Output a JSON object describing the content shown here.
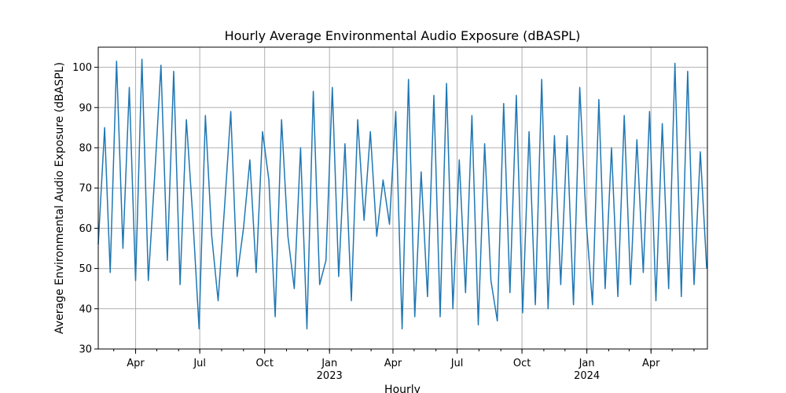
{
  "chart_data": {
    "type": "line",
    "title": "Hourly Average Environmental Audio Exposure (dBASPL)",
    "xlabel": "Hourly",
    "ylabel": "Average Environmental Audio Exposure (dBASPL)",
    "x_range": [
      "2022-02-07",
      "2024-06-20"
    ],
    "ylim": [
      30,
      105
    ],
    "grid": true,
    "series_color": "#1f77b4",
    "y_ticks": [
      30,
      40,
      50,
      60,
      70,
      80,
      90,
      100
    ],
    "x_ticks": [
      {
        "date": "2022-04-01",
        "label": "Apr",
        "year_label": ""
      },
      {
        "date": "2022-07-01",
        "label": "Jul",
        "year_label": ""
      },
      {
        "date": "2022-10-01",
        "label": "Oct",
        "year_label": ""
      },
      {
        "date": "2023-01-01",
        "label": "Jan",
        "year_label": "2023"
      },
      {
        "date": "2023-04-01",
        "label": "Apr",
        "year_label": ""
      },
      {
        "date": "2023-07-01",
        "label": "Jul",
        "year_label": ""
      },
      {
        "date": "2023-10-01",
        "label": "Oct",
        "year_label": ""
      },
      {
        "date": "2024-01-01",
        "label": "Jan",
        "year_label": "2024"
      },
      {
        "date": "2024-04-01",
        "label": "Apr",
        "year_label": ""
      }
    ],
    "series": [
      {
        "x": [
          "2022-02-07",
          "2022-02-16",
          "2022-02-24",
          "2022-03-05",
          "2022-03-14",
          "2022-03-23",
          "2022-04-01",
          "2022-04-10",
          "2022-04-19",
          "2022-04-28",
          "2022-05-07",
          "2022-05-16",
          "2022-05-25",
          "2022-06-03",
          "2022-06-12",
          "2022-06-21",
          "2022-06-30",
          "2022-07-09",
          "2022-07-18",
          "2022-07-27",
          "2022-08-05",
          "2022-08-14",
          "2022-08-23",
          "2022-09-01",
          "2022-09-10",
          "2022-09-19",
          "2022-09-28",
          "2022-10-07",
          "2022-10-16",
          "2022-10-25",
          "2022-11-03",
          "2022-11-12",
          "2022-11-21",
          "2022-11-30",
          "2022-12-09",
          "2022-12-18",
          "2022-12-27",
          "2023-01-05",
          "2023-01-14",
          "2023-01-23",
          "2023-02-01",
          "2023-02-10",
          "2023-02-19",
          "2023-02-28",
          "2023-03-09",
          "2023-03-18",
          "2023-03-27",
          "2023-04-05",
          "2023-04-14",
          "2023-04-23",
          "2023-05-02",
          "2023-05-11",
          "2023-05-20",
          "2023-05-29",
          "2023-06-07",
          "2023-06-16",
          "2023-06-25",
          "2023-07-04",
          "2023-07-13",
          "2023-07-22",
          "2023-07-31",
          "2023-08-09",
          "2023-08-18",
          "2023-08-27",
          "2023-09-05",
          "2023-09-14",
          "2023-09-23",
          "2023-10-02",
          "2023-10-11",
          "2023-10-20",
          "2023-10-29",
          "2023-11-07",
          "2023-11-16",
          "2023-11-25",
          "2023-12-04",
          "2023-12-13",
          "2023-12-22",
          "2023-12-31",
          "2024-01-09",
          "2024-01-18",
          "2024-01-27",
          "2024-02-05",
          "2024-02-14",
          "2024-02-23",
          "2024-03-03",
          "2024-03-12",
          "2024-03-21",
          "2024-03-30",
          "2024-04-08",
          "2024-04-17",
          "2024-04-26",
          "2024-05-05",
          "2024-05-14",
          "2024-05-23",
          "2024-06-01",
          "2024-06-10",
          "2024-06-19"
        ],
        "y": [
          56,
          85,
          49,
          101.5,
          55,
          95,
          47,
          102,
          47,
          73,
          100.5,
          52,
          99,
          46,
          87,
          63,
          35,
          88,
          58,
          42,
          65,
          89,
          48,
          60,
          77,
          49,
          84,
          72,
          38,
          87,
          58,
          45,
          80,
          35,
          94,
          46,
          52,
          95,
          48,
          81,
          42,
          87,
          62,
          84,
          58,
          72,
          61,
          89,
          35,
          97,
          38,
          74,
          43,
          93,
          38,
          96,
          40,
          77,
          44,
          88,
          36,
          81,
          47,
          37,
          91,
          44,
          93,
          39,
          84,
          41,
          97,
          40,
          83,
          46,
          83,
          41,
          95,
          62,
          41,
          92,
          45,
          80,
          43,
          88,
          46,
          82,
          49,
          89,
          42,
          86,
          45,
          101,
          43,
          99,
          46,
          79,
          50
        ]
      }
    ]
  }
}
